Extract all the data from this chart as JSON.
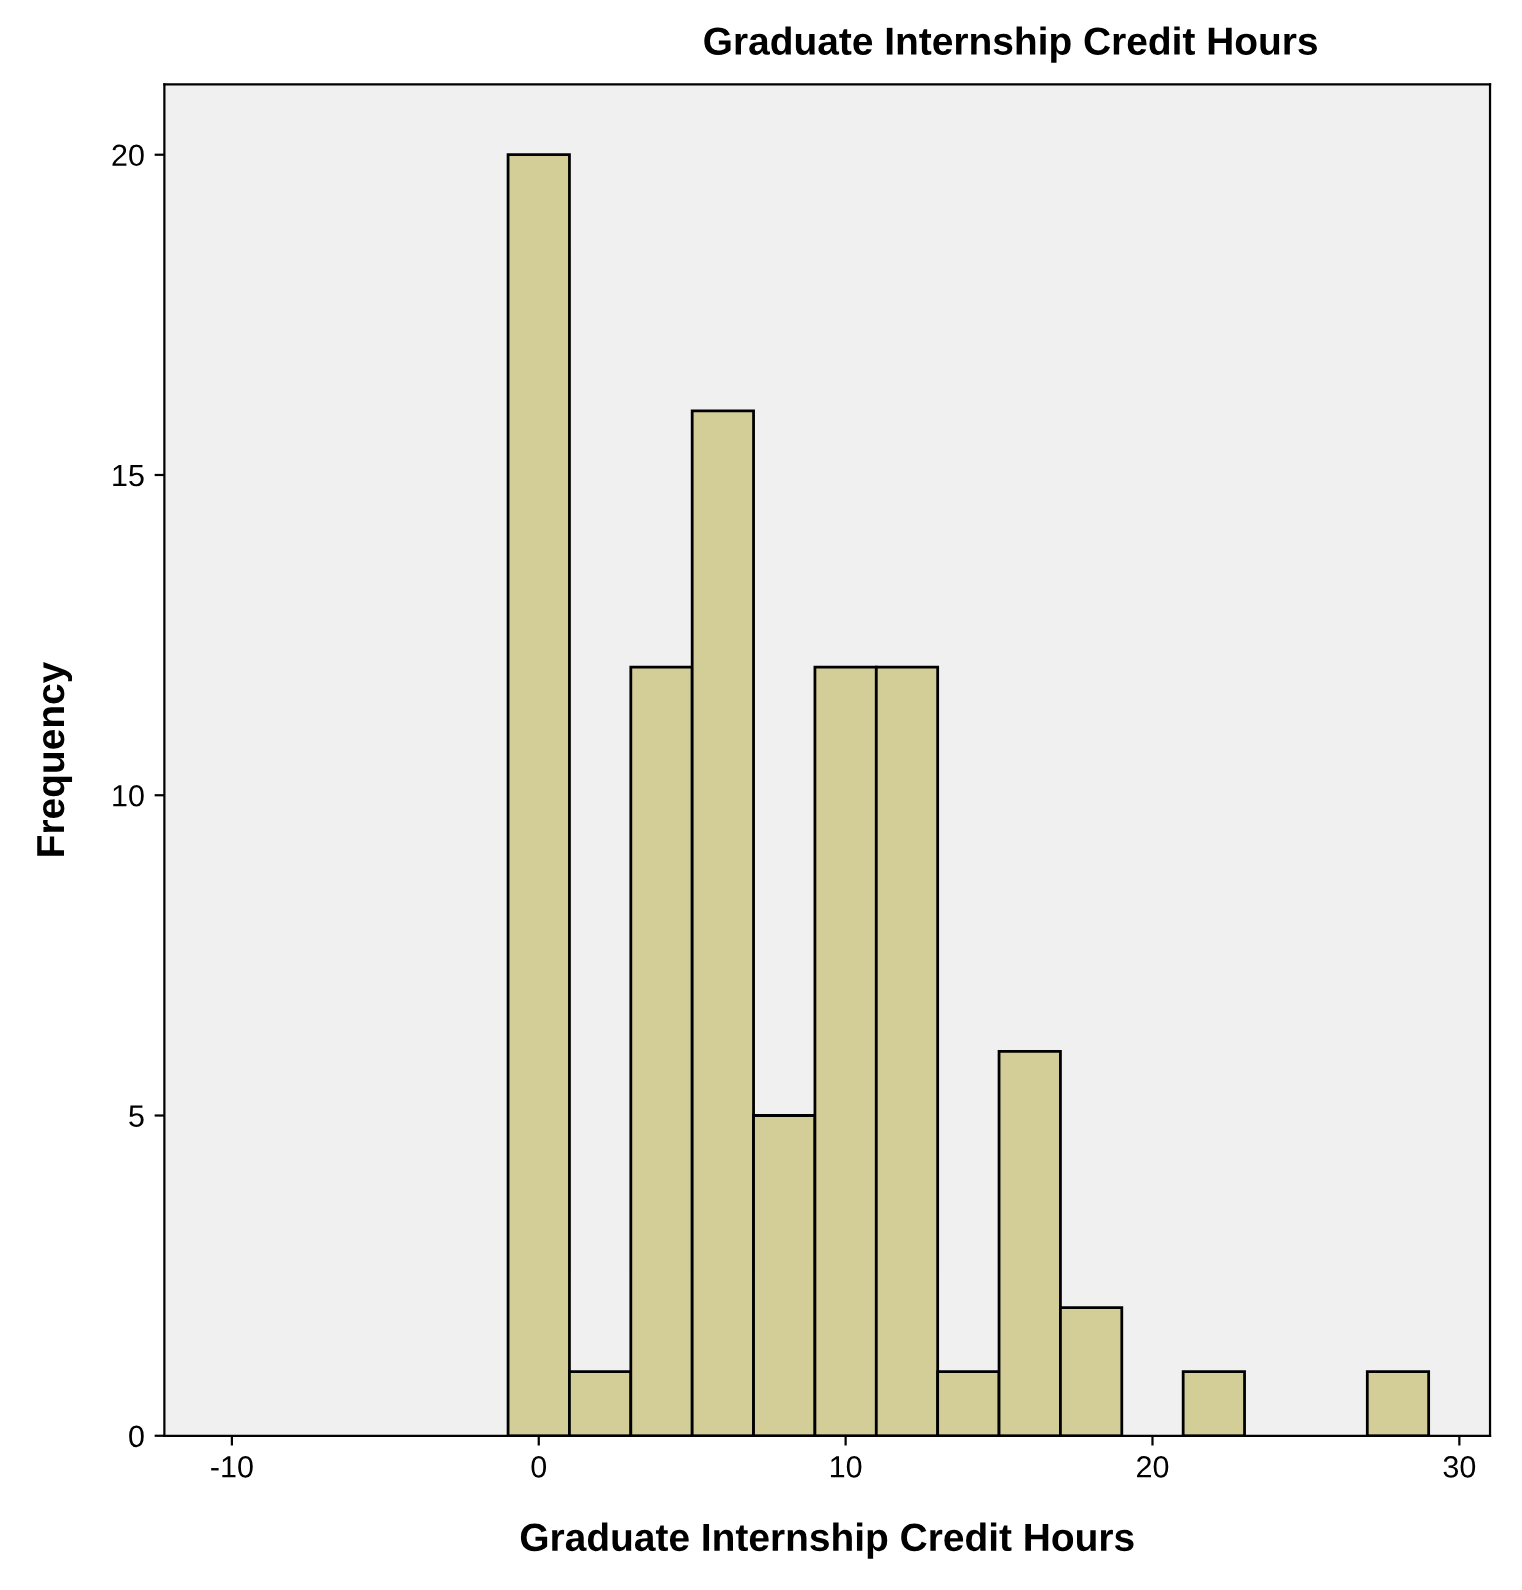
{
  "chart_data": {
    "type": "histogram",
    "title": "Graduate Internship Credit Hours",
    "xlabel": "Graduate Internship Credit Hours",
    "ylabel": "Frequency",
    "bins": [
      -1,
      1,
      3,
      5,
      7,
      9,
      11,
      13,
      15,
      17,
      19,
      21,
      23,
      25,
      27,
      29
    ],
    "values": [
      20,
      1,
      12,
      16,
      5,
      12,
      12,
      1,
      6,
      2,
      0,
      1,
      0,
      0,
      1
    ],
    "color": "#d3ce97",
    "xlim": [
      -12.2,
      31
    ],
    "xticks": [
      {
        "value": -10,
        "label": "-10"
      },
      0,
      10,
      20,
      30
    ],
    "ylim": [
      0,
      21.1
    ],
    "yticks": [
      0,
      5,
      10,
      15,
      20
    ],
    "grid": false,
    "legend": false
  }
}
